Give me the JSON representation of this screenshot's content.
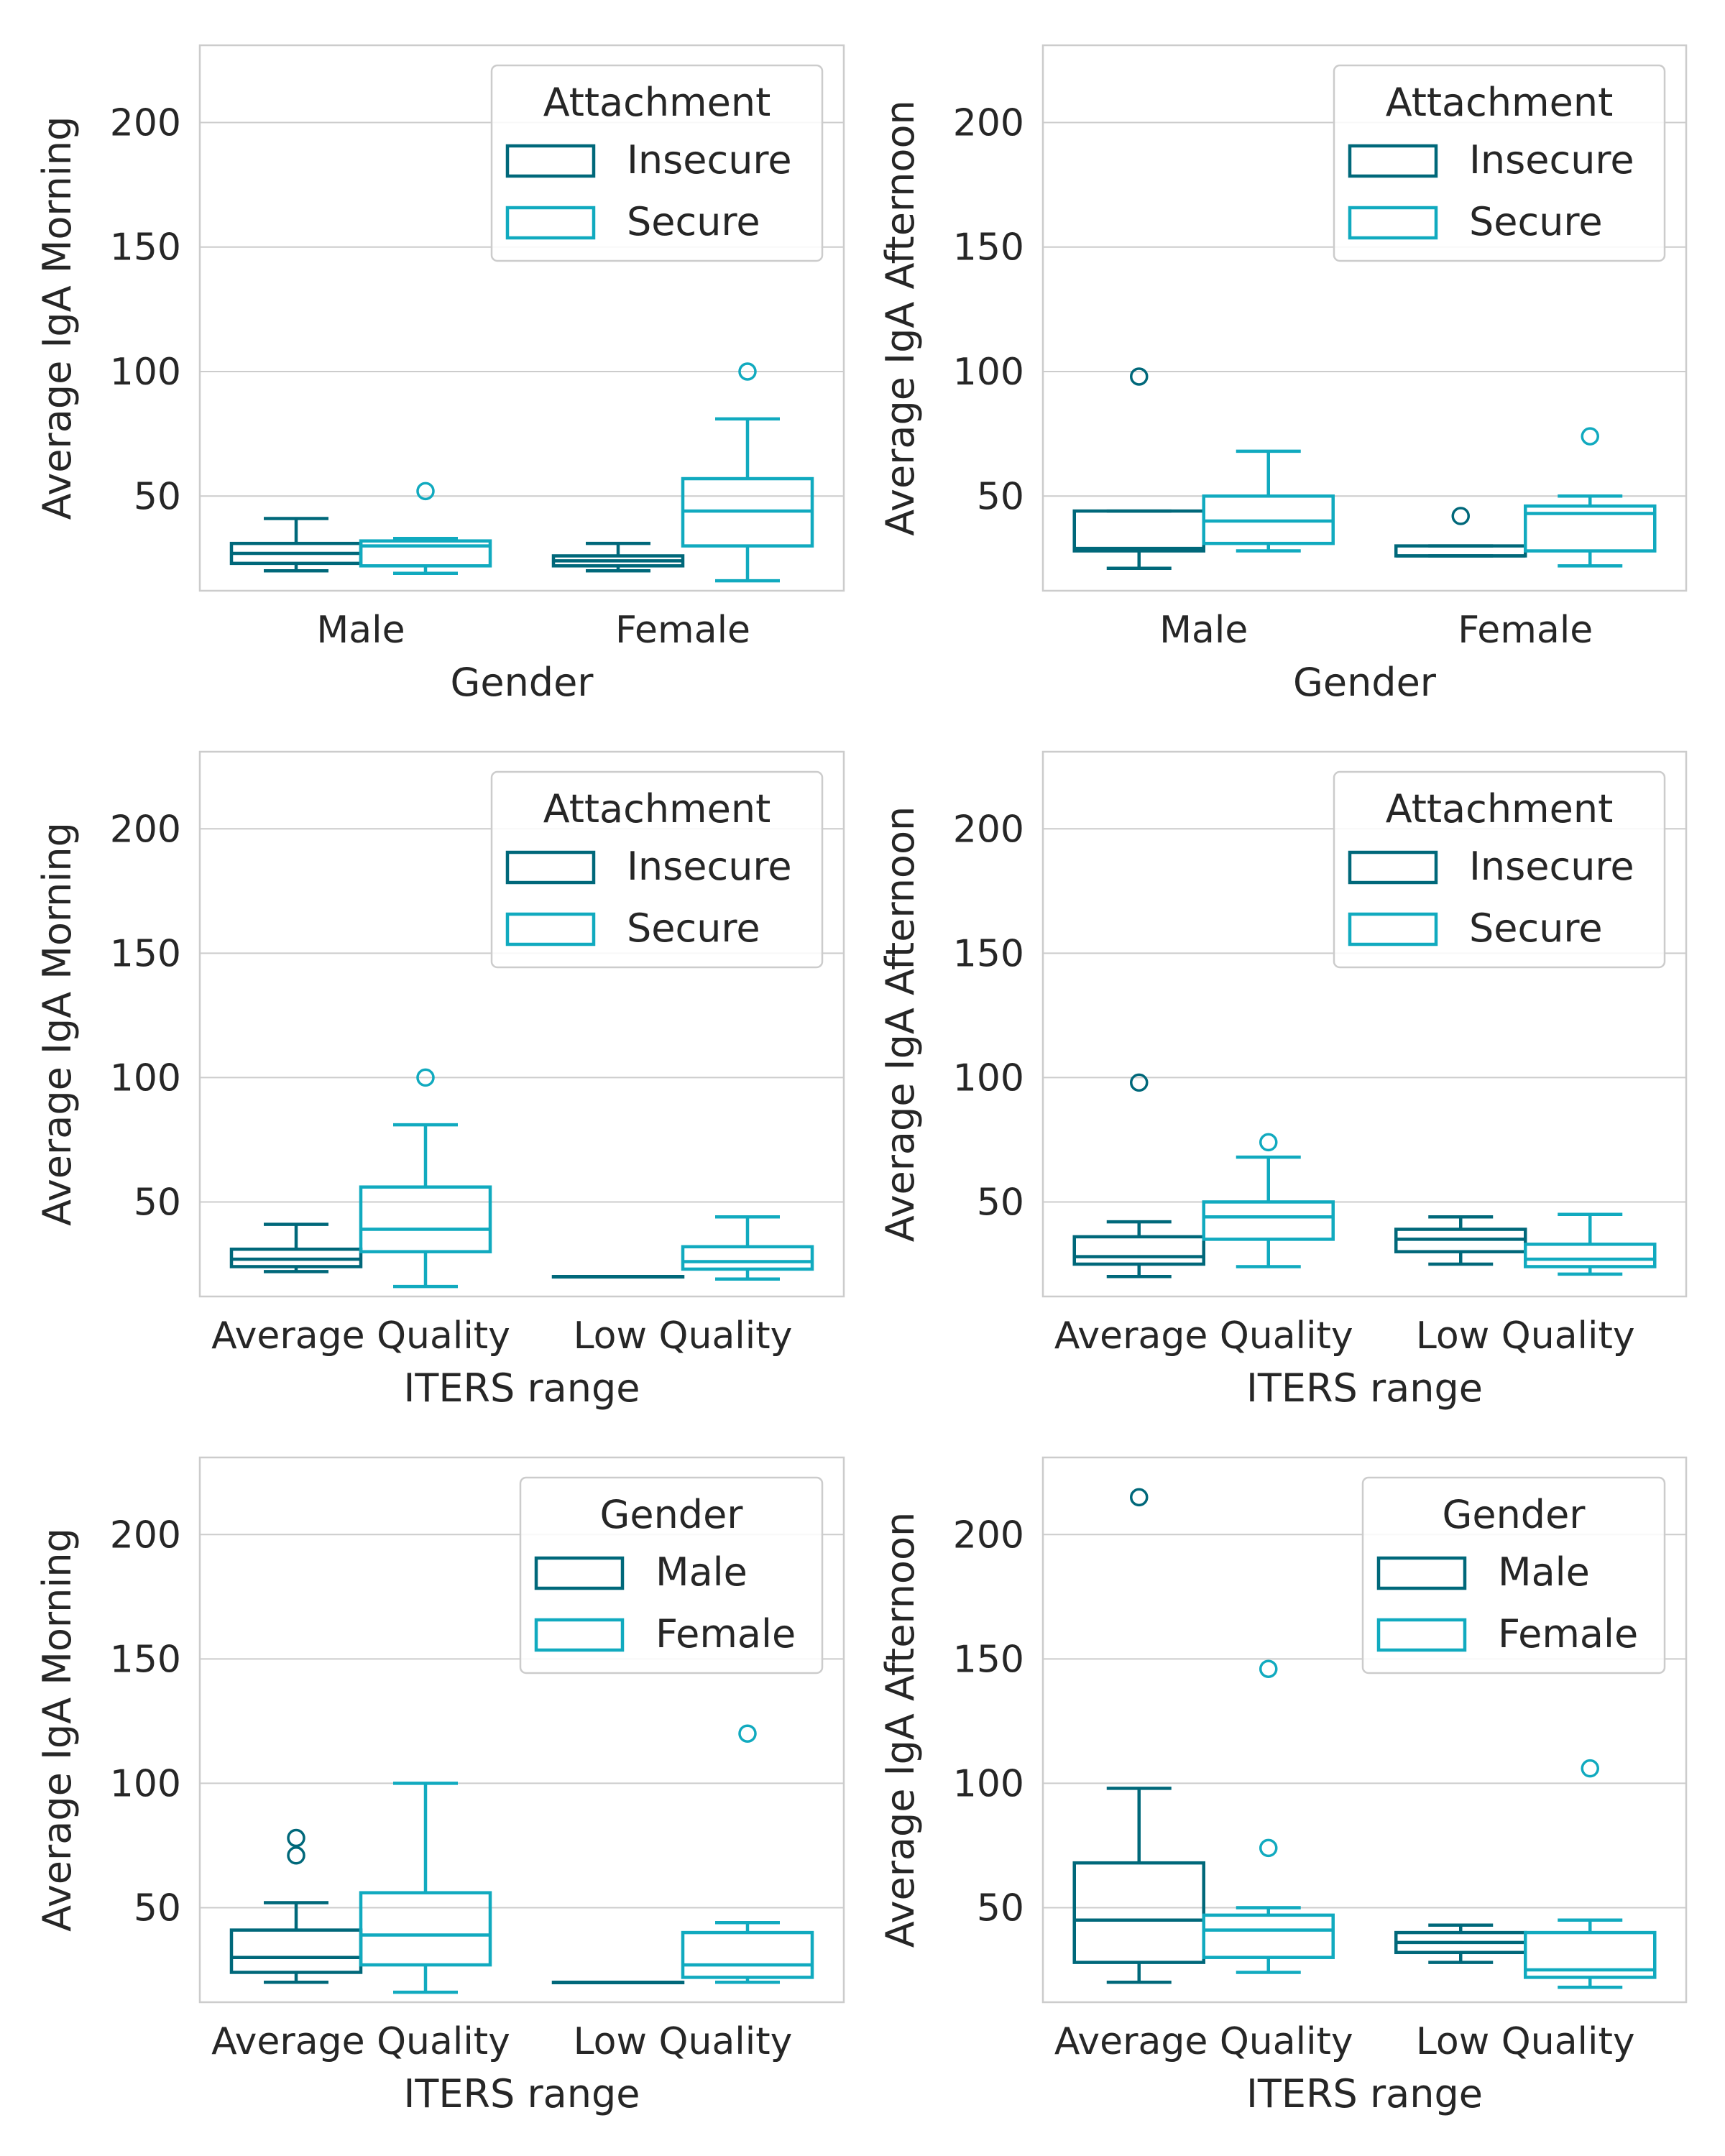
{
  "colors": {
    "first": "#00687a",
    "second": "#11aabf",
    "grid": "#cccccc",
    "text": "#262626"
  },
  "chart_data": [
    {
      "type": "box",
      "xlabel": "Gender",
      "ylabel": "Average IgA Morning",
      "categories": [
        "Male",
        "Female"
      ],
      "yticks": [
        50,
        100,
        150,
        200
      ],
      "ylim": [
        12,
        231
      ],
      "legend": {
        "title": "Attachment",
        "position": "upper-right",
        "labels": [
          "Insecure",
          "Secure"
        ]
      },
      "series": [
        {
          "name": "Insecure",
          "boxes": [
            {
              "whislo": 20,
              "q1": 23,
              "med": 27,
              "q3": 31,
              "whishi": 41,
              "fliers": []
            },
            {
              "whislo": 20,
              "q1": 22,
              "med": 24,
              "q3": 26,
              "whishi": 31,
              "fliers": []
            }
          ]
        },
        {
          "name": "Secure",
          "boxes": [
            {
              "whislo": 19,
              "q1": 22,
              "med": 30,
              "q3": 32,
              "whishi": 33,
              "fliers": [
                52
              ]
            },
            {
              "whislo": 16,
              "q1": 30,
              "med": 44,
              "q3": 57,
              "whishi": 81,
              "fliers": [
                100
              ]
            }
          ]
        }
      ]
    },
    {
      "type": "box",
      "xlabel": "Gender",
      "ylabel": "Average IgA Afternoon",
      "categories": [
        "Male",
        "Female"
      ],
      "yticks": [
        50,
        100,
        150,
        200
      ],
      "ylim": [
        12,
        231
      ],
      "legend": {
        "title": "Attachment",
        "position": "upper-right",
        "labels": [
          "Insecure",
          "Secure"
        ]
      },
      "series": [
        {
          "name": "Insecure",
          "boxes": [
            {
              "whislo": 21,
              "q1": 28,
              "med": 29,
              "q3": 44,
              "whishi": 44,
              "fliers": [
                98
              ]
            },
            {
              "whislo": 26,
              "q1": 26,
              "med": 26,
              "q3": 30,
              "whishi": 30,
              "fliers": [
                42
              ]
            }
          ]
        },
        {
          "name": "Secure",
          "boxes": [
            {
              "whislo": 28,
              "q1": 31,
              "med": 40,
              "q3": 50,
              "whishi": 68,
              "fliers": []
            },
            {
              "whislo": 22,
              "q1": 28,
              "med": 43,
              "q3": 46,
              "whishi": 50,
              "fliers": [
                74
              ]
            }
          ]
        }
      ]
    },
    {
      "type": "box",
      "xlabel": "ITERS range",
      "ylabel": "Average IgA Morning",
      "categories": [
        "Average Quality",
        "Low Quality"
      ],
      "yticks": [
        50,
        100,
        150,
        200
      ],
      "ylim": [
        12,
        231
      ],
      "legend": {
        "title": "Attachment",
        "position": "upper-right",
        "labels": [
          "Insecure",
          "Secure"
        ]
      },
      "series": [
        {
          "name": "Insecure",
          "boxes": [
            {
              "whislo": 22,
              "q1": 24,
              "med": 27,
              "q3": 31,
              "whishi": 41,
              "fliers": []
            },
            {
              "whislo": 20,
              "q1": 20,
              "med": 20,
              "q3": 20,
              "whishi": 20,
              "fliers": []
            }
          ]
        },
        {
          "name": "Secure",
          "boxes": [
            {
              "whislo": 16,
              "q1": 30,
              "med": 39,
              "q3": 56,
              "whishi": 81,
              "fliers": [
                100
              ]
            },
            {
              "whislo": 19,
              "q1": 23,
              "med": 26,
              "q3": 32,
              "whishi": 44,
              "fliers": []
            }
          ]
        }
      ]
    },
    {
      "type": "box",
      "xlabel": "ITERS range",
      "ylabel": "Average IgA Afternoon",
      "categories": [
        "Average Quality",
        "Low Quality"
      ],
      "yticks": [
        50,
        100,
        150,
        200
      ],
      "ylim": [
        12,
        231
      ],
      "legend": {
        "title": "Attachment",
        "position": "upper-right",
        "labels": [
          "Insecure",
          "Secure"
        ]
      },
      "series": [
        {
          "name": "Insecure",
          "boxes": [
            {
              "whislo": 20,
              "q1": 25,
              "med": 28,
              "q3": 36,
              "whishi": 42,
              "fliers": [
                98
              ]
            },
            {
              "whislo": 25,
              "q1": 30,
              "med": 35,
              "q3": 39,
              "whishi": 44,
              "fliers": []
            }
          ]
        },
        {
          "name": "Secure",
          "boxes": [
            {
              "whislo": 24,
              "q1": 35,
              "med": 44,
              "q3": 50,
              "whishi": 68,
              "fliers": [
                74
              ]
            },
            {
              "whislo": 21,
              "q1": 24,
              "med": 27,
              "q3": 33,
              "whishi": 45,
              "fliers": []
            }
          ]
        }
      ]
    },
    {
      "type": "box",
      "xlabel": "ITERS range",
      "ylabel": "Average IgA Morning",
      "categories": [
        "Average Quality",
        "Low Quality"
      ],
      "yticks": [
        50,
        100,
        150,
        200
      ],
      "ylim": [
        12,
        231
      ],
      "legend": {
        "title": "Gender",
        "position": "upper-right",
        "labels": [
          "Male",
          "Female"
        ]
      },
      "series": [
        {
          "name": "Male",
          "boxes": [
            {
              "whislo": 20,
              "q1": 24,
              "med": 30,
              "q3": 41,
              "whishi": 52,
              "fliers": [
                71,
                78
              ]
            },
            {
              "whislo": 20,
              "q1": 20,
              "med": 20,
              "q3": 20,
              "whishi": 20,
              "fliers": []
            }
          ]
        },
        {
          "name": "Female",
          "boxes": [
            {
              "whislo": 16,
              "q1": 27,
              "med": 39,
              "q3": 56,
              "whishi": 100,
              "fliers": []
            },
            {
              "whislo": 20,
              "q1": 22,
              "med": 27,
              "q3": 40,
              "whishi": 44,
              "fliers": [
                120
              ]
            }
          ]
        }
      ]
    },
    {
      "type": "box",
      "xlabel": "ITERS range",
      "ylabel": "Average IgA Afternoon",
      "categories": [
        "Average Quality",
        "Low Quality"
      ],
      "yticks": [
        50,
        100,
        150,
        200
      ],
      "ylim": [
        12,
        231
      ],
      "legend": {
        "title": "Gender",
        "position": "upper-right",
        "labels": [
          "Male",
          "Female"
        ]
      },
      "series": [
        {
          "name": "Male",
          "boxes": [
            {
              "whislo": 20,
              "q1": 28,
              "med": 45,
              "q3": 68,
              "whishi": 98,
              "fliers": [
                215
              ]
            },
            {
              "whislo": 28,
              "q1": 32,
              "med": 36,
              "q3": 40,
              "whishi": 43,
              "fliers": []
            }
          ]
        },
        {
          "name": "Female",
          "boxes": [
            {
              "whislo": 24,
              "q1": 30,
              "med": 41,
              "q3": 47,
              "whishi": 50,
              "fliers": [
                74,
                146
              ]
            },
            {
              "whislo": 18,
              "q1": 22,
              "med": 25,
              "q3": 40,
              "whishi": 45,
              "fliers": [
                106
              ]
            }
          ]
        }
      ]
    }
  ]
}
